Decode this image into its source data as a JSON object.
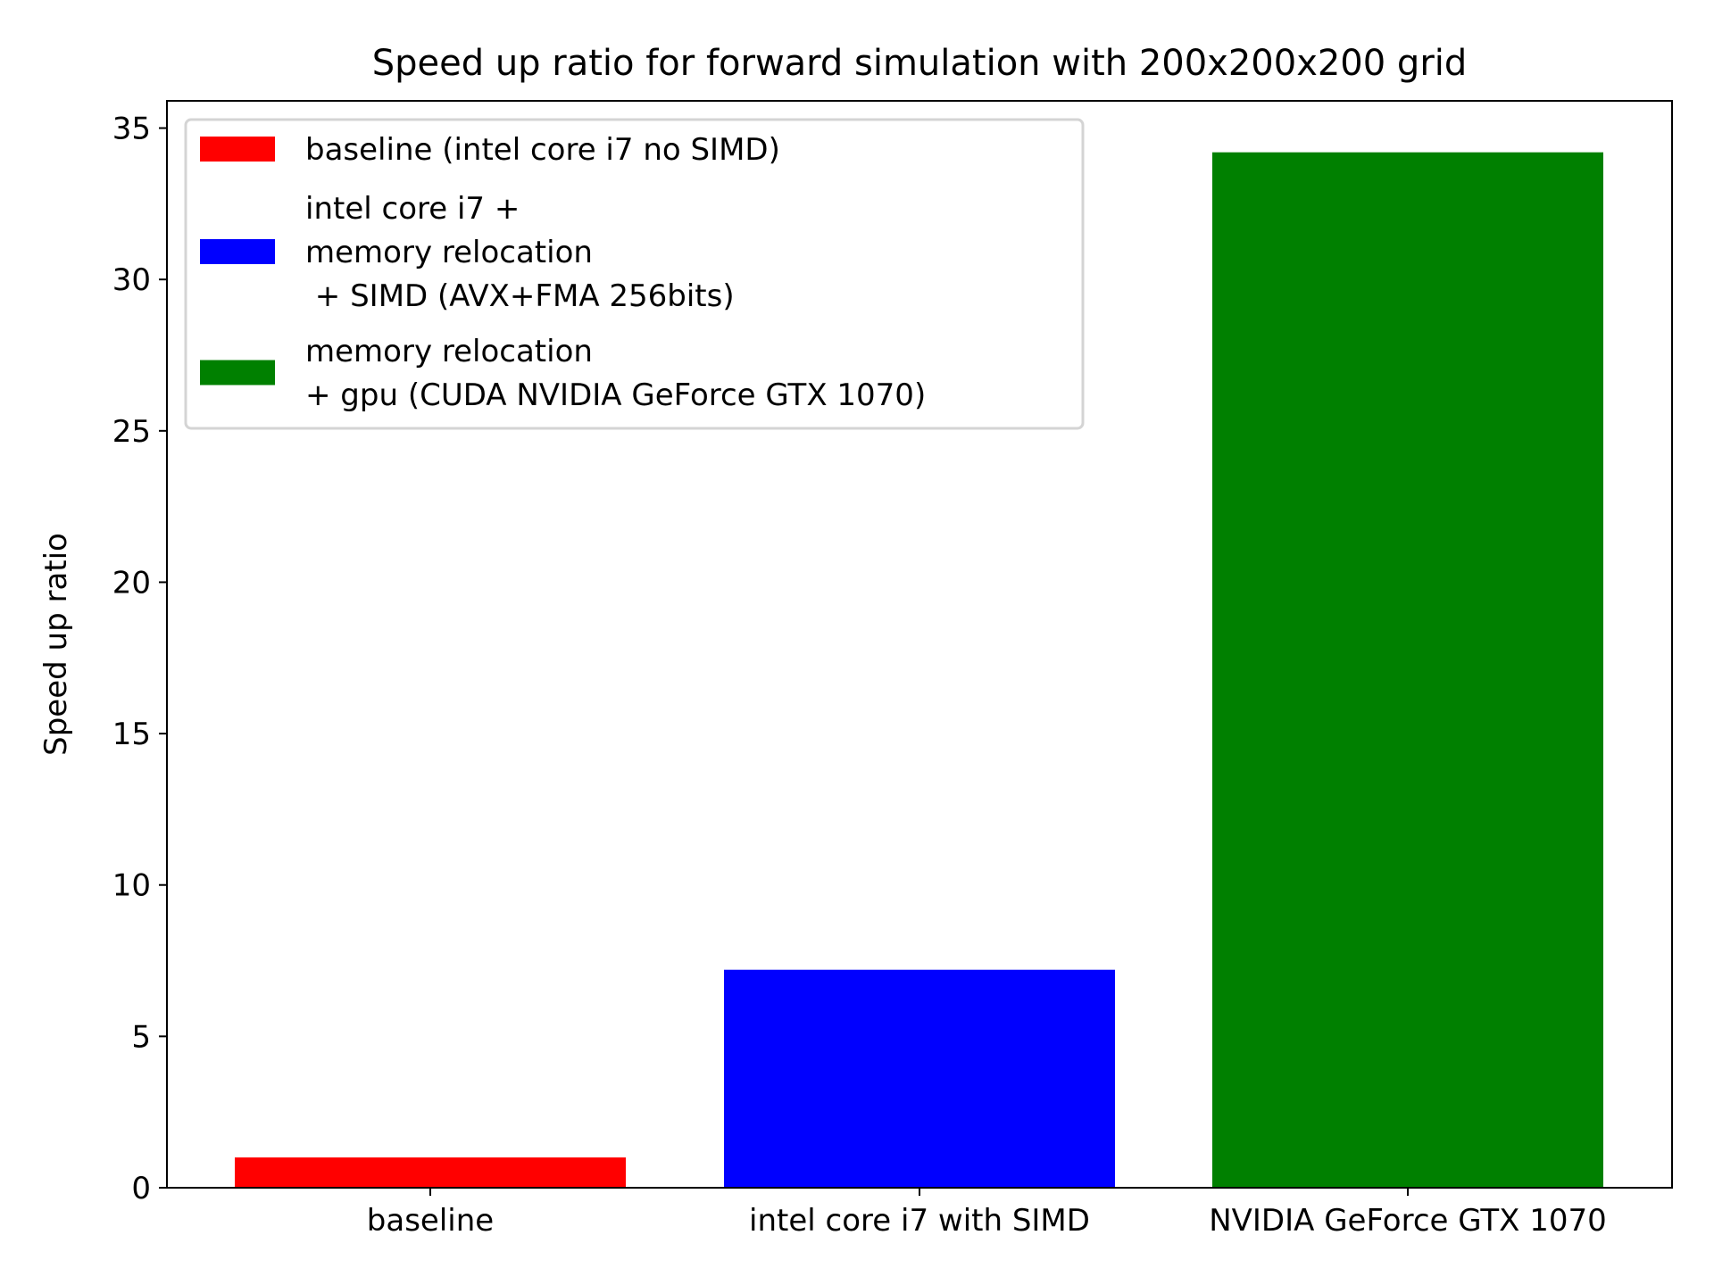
{
  "chart_data": {
    "type": "bar",
    "title": "Speed up ratio for forward simulation with 200x200x200 grid",
    "xlabel": "",
    "ylabel": "Speed up ratio",
    "ylim": [
      0,
      35.9
    ],
    "yticks": [
      "0",
      "5",
      "10",
      "15",
      "20",
      "25",
      "30",
      "35"
    ],
    "categories": [
      "baseline",
      "intel core i7 with SIMD",
      "NVIDIA GeForce GTX 1070"
    ],
    "values": [
      1.0,
      7.2,
      34.2
    ],
    "colors": [
      "#ff0000",
      "#0000ff",
      "#008000"
    ],
    "grid": false,
    "legend_position": "top-left",
    "legend": [
      {
        "lines": [
          "baseline (intel core i7 no SIMD)"
        ],
        "color": "#ff0000"
      },
      {
        "lines": [
          "intel core i7 +",
          "memory relocation",
          " + SIMD (AVX+FMA 256bits)"
        ],
        "color": "#0000ff"
      },
      {
        "lines": [
          "memory relocation",
          "+ gpu (CUDA NVIDIA GeForce GTX 1070)"
        ],
        "color": "#008000"
      }
    ]
  }
}
